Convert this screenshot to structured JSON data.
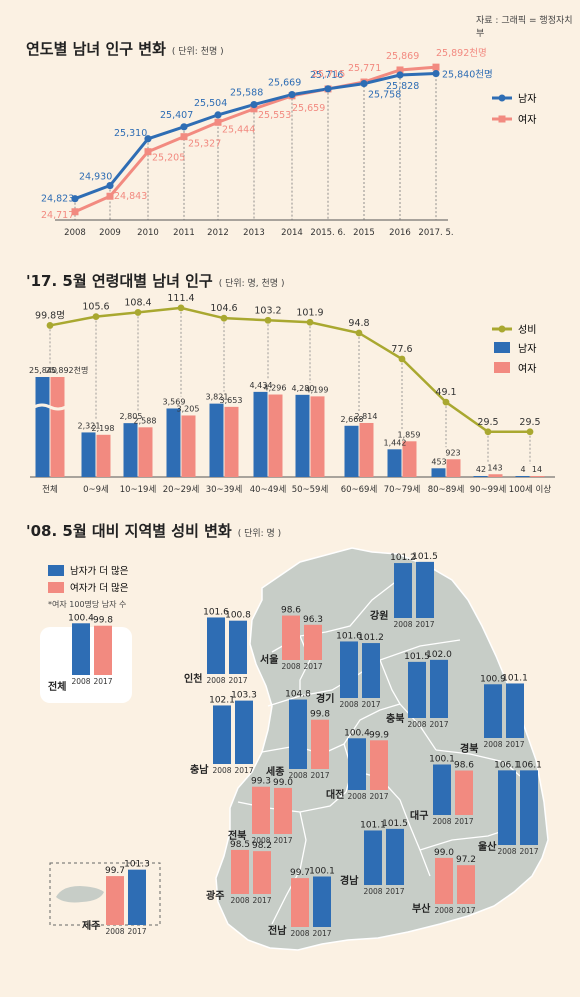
{
  "source": "자료 : 그래픽 = 행정자치부",
  "colors": {
    "male": "#2e6db4",
    "female": "#f28a80",
    "ratio": "#a9a830",
    "bg": "#fbf1e3",
    "map": "#c7cdc7"
  },
  "chart1": {
    "title": "연도별 남녀 인구 변화",
    "unit": "( 단위: 천명 )",
    "legend": {
      "male": "남자",
      "female": "여자"
    }
  },
  "chart2": {
    "title": "'17. 5월 연령대별 남녀 인구",
    "unit": "( 단위: 명, 천명 )",
    "legend": {
      "ratio": "성비",
      "male": "남자",
      "female": "여자"
    }
  },
  "chart3": {
    "title": "'08. 5월 대비 지역별 성비 변화",
    "unit": "( 단위: 명 )",
    "legend": {
      "male_more": "남자가 더 많은",
      "female_more": "여자가 더 많은",
      "note": "*여자 100명당 남자 수"
    },
    "year_labels": [
      "2008",
      "2017"
    ]
  },
  "chart_data": [
    {
      "type": "line",
      "categories": [
        "2008",
        "2009",
        "2010",
        "2011",
        "2012",
        "2013",
        "2014",
        "2015. 6.",
        "2015",
        "2016",
        "2017. 5."
      ],
      "series": [
        {
          "name": "남자",
          "values": [
            24823,
            24930,
            25310,
            25407,
            25504,
            25588,
            25669,
            25716,
            25758,
            25828,
            25840
          ],
          "labels": [
            "24,823",
            "24,930",
            "25,310",
            "25,407",
            "25,504",
            "25,588",
            "25,669",
            "25,716",
            "25,758",
            "25,828",
            "25,840천명"
          ]
        },
        {
          "name": "여자",
          "values": [
            24717,
            24843,
            25205,
            25327,
            25444,
            25553,
            25659,
            25715,
            25771,
            25869,
            25892
          ],
          "labels": [
            "24,717",
            "24,843",
            "25,205",
            "25,327",
            "25,444",
            "25,553",
            "25,659",
            "25,715",
            "25,771",
            "25,869",
            "25,892천명"
          ]
        }
      ]
    },
    {
      "type": "bar",
      "categories": [
        "전체",
        "0~9세",
        "10~19세",
        "20~29세",
        "30~39세",
        "40~49세",
        "50~59세",
        "60~69세",
        "70~79세",
        "80~89세",
        "90~99세",
        "100세 이상"
      ],
      "series": [
        {
          "name": "남자",
          "values": [
            25840,
            2321,
            2805,
            3569,
            3821,
            4434,
            4280,
            2668,
            1442,
            453,
            42,
            4
          ],
          "labels": [
            "25,840",
            "2,321",
            "2,805",
            "3,569",
            "3,821",
            "4,434",
            "4,280",
            "2,668",
            "1,442",
            "453",
            "42",
            "4"
          ]
        },
        {
          "name": "여자",
          "values": [
            25892,
            2198,
            2588,
            3205,
            3653,
            4296,
            4199,
            2814,
            1859,
            923,
            143,
            14
          ],
          "labels": [
            "25,892천명",
            "2,198",
            "2,588",
            "3,205",
            "3,653",
            "4,296",
            "4,199",
            "2,814",
            "1,859",
            "923",
            "143",
            "14"
          ]
        },
        {
          "name": "성비",
          "values": [
            99.8,
            105.6,
            108.4,
            111.4,
            104.6,
            103.2,
            101.9,
            94.8,
            77.6,
            49.1,
            29.5,
            29.5
          ],
          "labels": [
            "99.8명",
            "105.6",
            "108.4",
            "111.4",
            "104.6",
            "103.2",
            "101.9",
            "94.8",
            "77.6",
            "49.1",
            "29.5",
            "29.5"
          ]
        }
      ]
    },
    {
      "type": "bar",
      "regions": [
        {
          "name": "전체",
          "v2008": 100.4,
          "v2017": 99.8
        },
        {
          "name": "강원",
          "v2008": 101.2,
          "v2017": 101.5
        },
        {
          "name": "서울",
          "v2008": 98.6,
          "v2017": 96.3
        },
        {
          "name": "인천",
          "v2008": 101.6,
          "v2017": 100.8
        },
        {
          "name": "경기",
          "v2008": 101.6,
          "v2017": 101.2
        },
        {
          "name": "충북",
          "v2008": 101.5,
          "v2017": 102.0
        },
        {
          "name": "경북",
          "v2008": 100.9,
          "v2017": 101.1
        },
        {
          "name": "충남",
          "v2008": 102.1,
          "v2017": 103.3
        },
        {
          "name": "세종",
          "v2008": 104.8,
          "v2017": 99.8
        },
        {
          "name": "대전",
          "v2008": 100.4,
          "v2017": 99.9
        },
        {
          "name": "대구",
          "v2008": 100.1,
          "v2017": 98.6
        },
        {
          "name": "울산",
          "v2008": 106.1,
          "v2017": 106.1
        },
        {
          "name": "전북",
          "v2008": 99.3,
          "v2017": 99.0
        },
        {
          "name": "경남",
          "v2008": 101.1,
          "v2017": 101.5
        },
        {
          "name": "광주",
          "v2008": 98.5,
          "v2017": 98.2
        },
        {
          "name": "전남",
          "v2008": 99.7,
          "v2017": 100.1
        },
        {
          "name": "부산",
          "v2008": 99.0,
          "v2017": 97.2
        },
        {
          "name": "제주",
          "v2008": 99.7,
          "v2017": 101.3
        }
      ]
    }
  ]
}
